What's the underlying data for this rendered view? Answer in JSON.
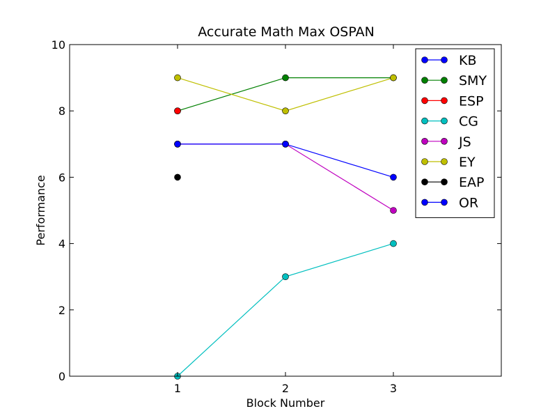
{
  "chart_data": {
    "type": "line",
    "title": "Accurate Math Max OSPAN",
    "xlabel": "Block Number",
    "ylabel": "Performance",
    "xlim": [
      0,
      4
    ],
    "ylim": [
      0,
      10
    ],
    "xticks": [
      1,
      2,
      3
    ],
    "yticks": [
      0,
      2,
      4,
      6,
      8,
      10
    ],
    "grid": false,
    "legend_position": "upper right",
    "series": [
      {
        "name": "KB",
        "color": "#0000ff",
        "x": [
          1,
          2,
          3
        ],
        "y": [
          7,
          7,
          6
        ]
      },
      {
        "name": "SMY",
        "color": "#008000",
        "x": [
          1,
          2,
          3
        ],
        "y": [
          8,
          9,
          9
        ]
      },
      {
        "name": "ESP",
        "color": "#ff0000",
        "x": [
          1
        ],
        "y": [
          8
        ]
      },
      {
        "name": "CG",
        "color": "#00bfbf",
        "x": [
          1,
          2,
          3
        ],
        "y": [
          0,
          3,
          4
        ]
      },
      {
        "name": "JS",
        "color": "#bf00bf",
        "x": [
          1,
          2,
          3
        ],
        "y": [
          7,
          7,
          5
        ]
      },
      {
        "name": "EY",
        "color": "#bfbf00",
        "x": [
          1,
          2,
          3
        ],
        "y": [
          9,
          8,
          9
        ]
      },
      {
        "name": "EAP",
        "color": "#000000",
        "x": [
          1
        ],
        "y": [
          6
        ]
      },
      {
        "name": "OR",
        "color": "#0000ff",
        "x": [
          1,
          2
        ],
        "y": [
          7,
          7
        ]
      }
    ]
  }
}
